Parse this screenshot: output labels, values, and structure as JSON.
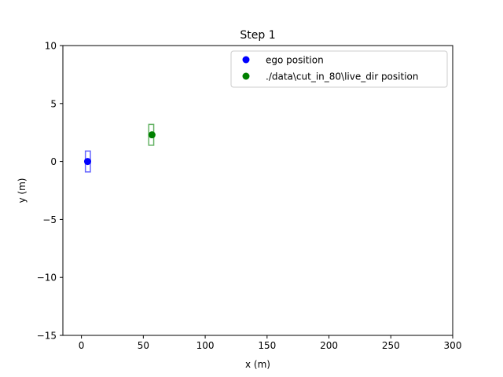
{
  "chart_data": {
    "type": "scatter",
    "title": "Step 1",
    "xlabel": "x (m)",
    "ylabel": "y (m)",
    "xlim": [
      -15,
      300
    ],
    "ylim": [
      -15,
      10
    ],
    "x_ticks": [
      0,
      50,
      100,
      150,
      200,
      250,
      300
    ],
    "x_tick_labels": [
      "0",
      "50",
      "100",
      "150",
      "200",
      "250",
      "300"
    ],
    "y_ticks": [
      -15,
      -10,
      -5,
      0,
      5,
      10
    ],
    "y_tick_labels": [
      "−15",
      "−10",
      "−5",
      "0",
      "5",
      "10"
    ],
    "grid": false,
    "legend_position": "top-right",
    "series": [
      {
        "name": "ego position",
        "color": "#0000ff",
        "points": [
          {
            "x": 5,
            "y": 0
          }
        ],
        "box": {
          "x": [
            3.2,
            7.2
          ],
          "y": [
            -0.9,
            0.9
          ]
        }
      },
      {
        "name": "./data\\cut_in_80\\live_dir position",
        "color": "#008000",
        "points": [
          {
            "x": 57,
            "y": 2.3
          }
        ],
        "box": {
          "x": [
            54.4,
            58.4
          ],
          "y": [
            1.4,
            3.2
          ]
        }
      }
    ]
  }
}
